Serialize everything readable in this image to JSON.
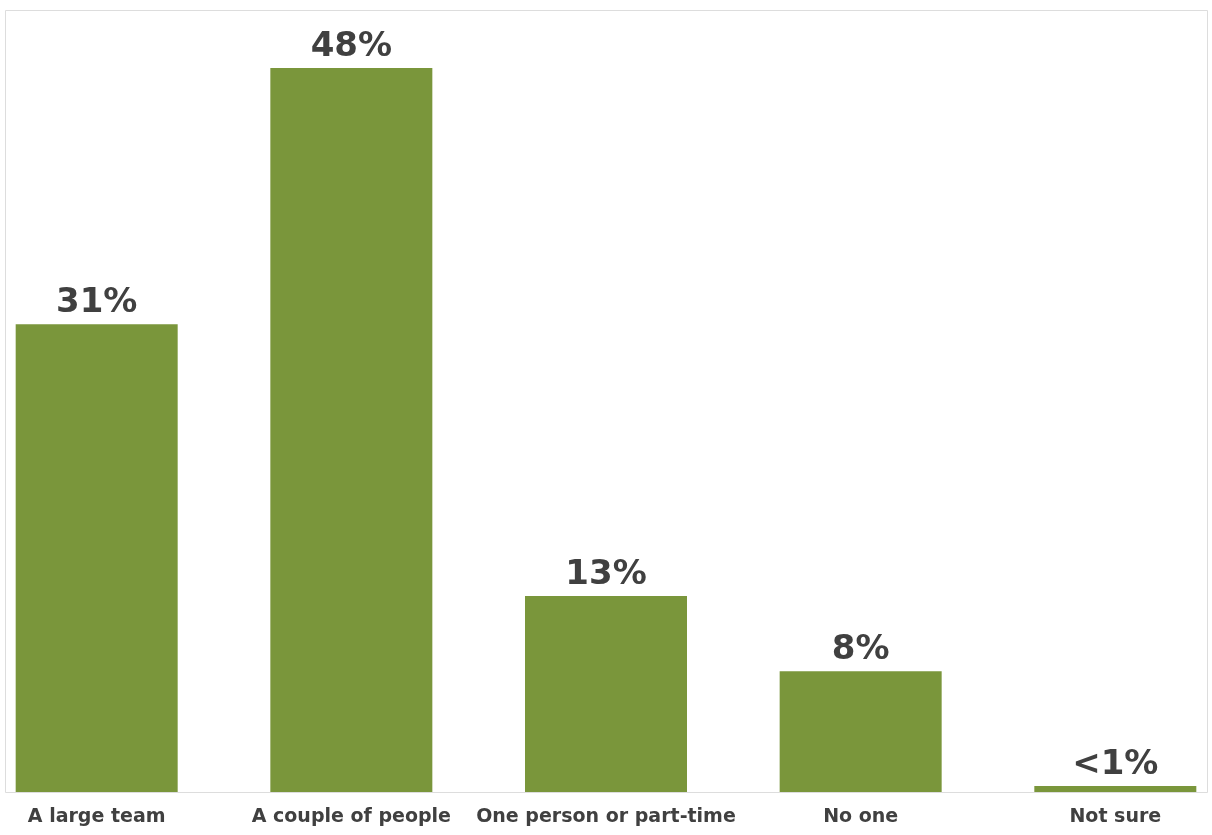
{
  "chart_data": {
    "type": "bar",
    "categories": [
      "A large team",
      "A couple of people",
      "One person or part-time",
      "No one",
      "Not sure"
    ],
    "values": [
      31,
      48,
      13,
      8,
      0.4
    ],
    "value_labels": [
      "31%",
      "48%",
      "13%",
      "8%",
      "<1%"
    ],
    "color": "#7a963b",
    "grid": false
  }
}
